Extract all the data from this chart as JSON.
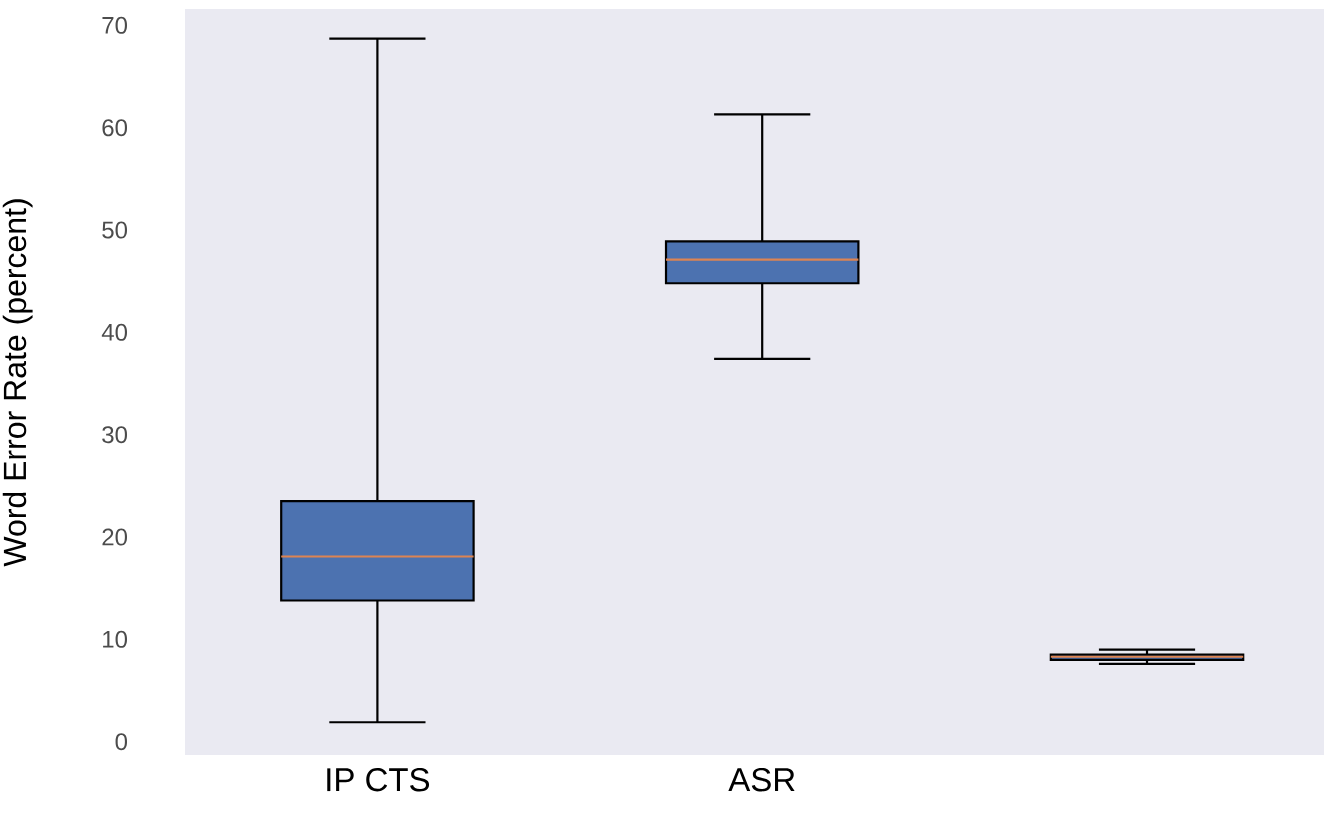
{
  "chart_data": {
    "type": "box",
    "ylabel": "Word Error Rate (percent)",
    "categories": [
      "IP CTS",
      "ASR",
      null
    ],
    "series": [
      {
        "color": "#4c72b0",
        "boxes": [
          {
            "low": 1.9,
            "q1": 13.8,
            "median": 18.1,
            "q3": 23.5,
            "high": 68.7
          },
          {
            "low": 37.4,
            "q1": 44.8,
            "median": 47.1,
            "q3": 48.9,
            "high": 61.3
          },
          {
            "low": 7.6,
            "q1": 8.0,
            "median": 8.3,
            "q3": 8.5,
            "high": 9.0
          }
        ]
      }
    ],
    "ylim": [
      -1.3,
      71.6
    ],
    "yticks": [
      0,
      10,
      20,
      30,
      40,
      50,
      60,
      70
    ]
  }
}
